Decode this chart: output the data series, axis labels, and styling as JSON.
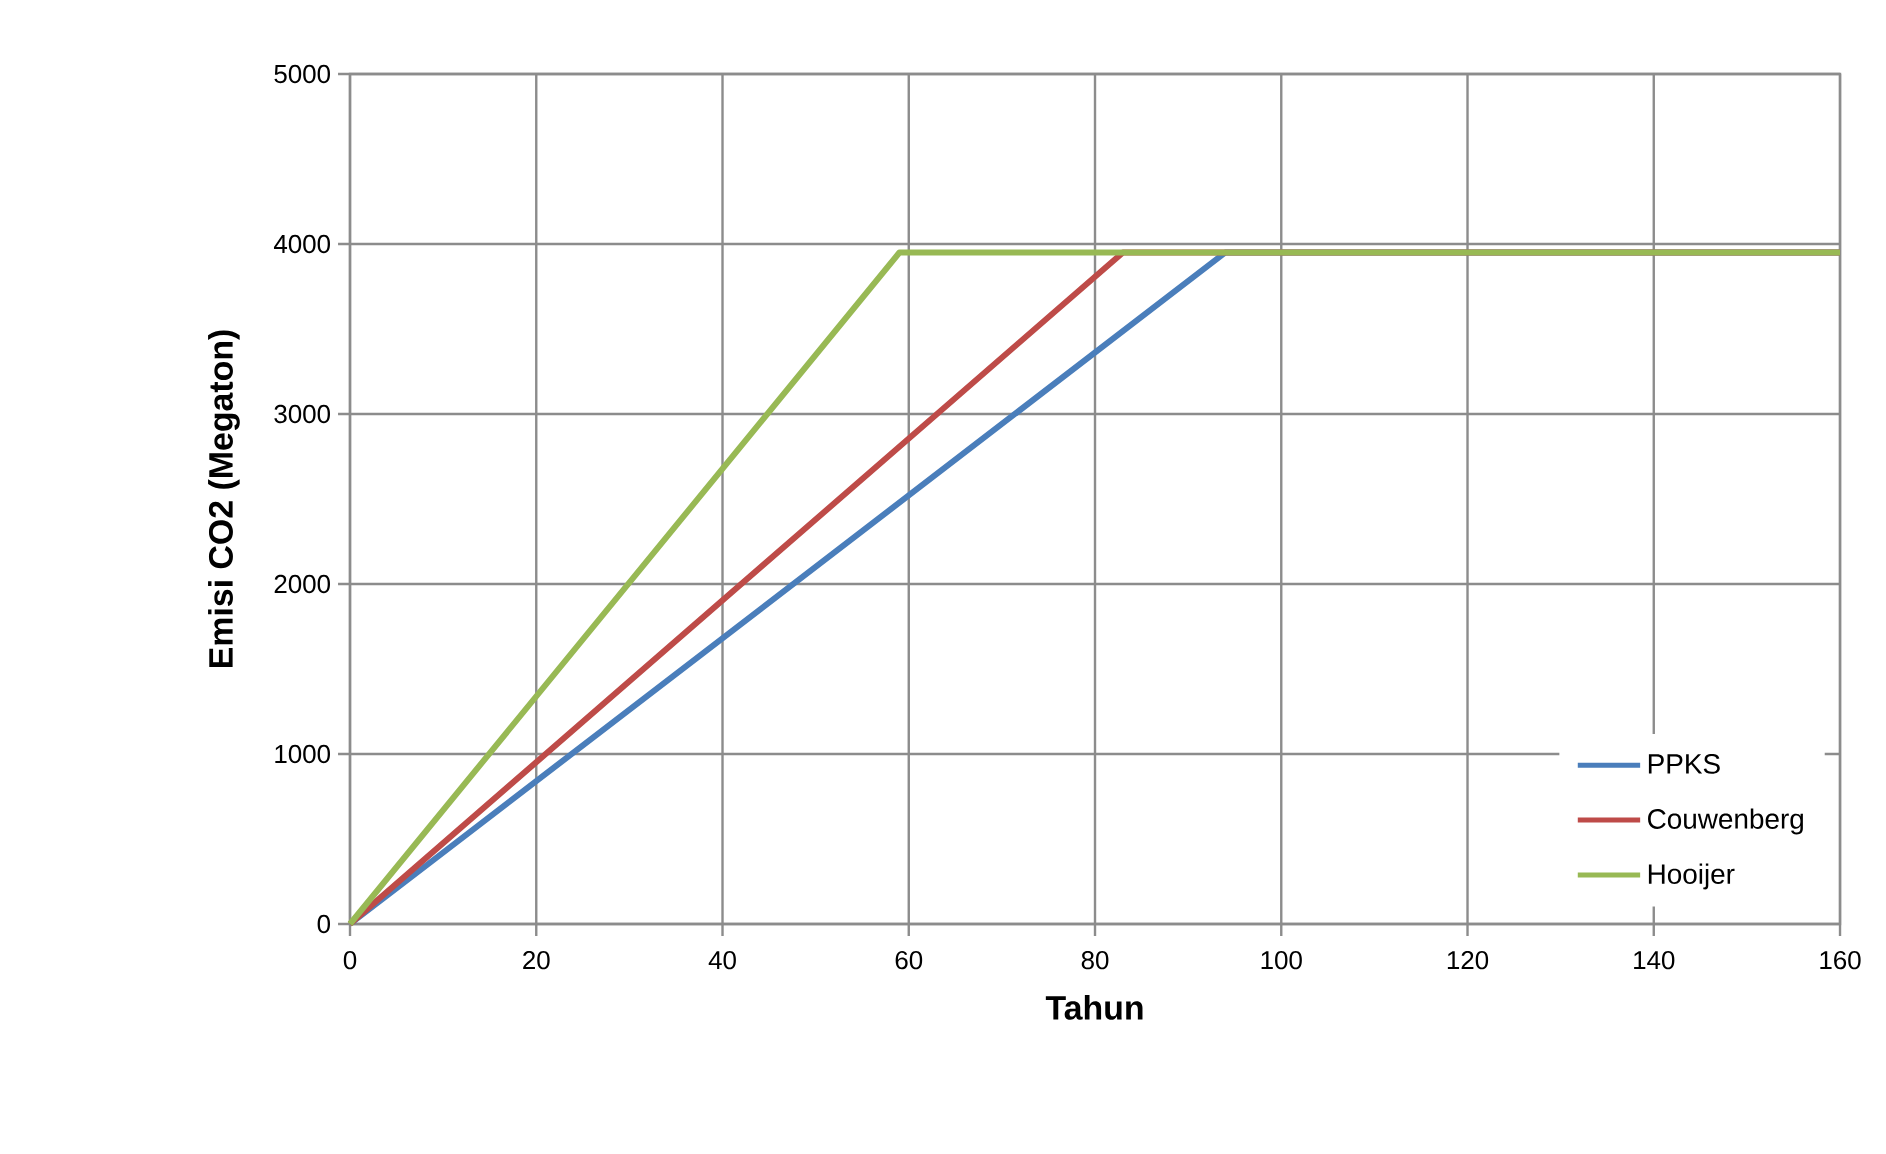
{
  "chart_data": {
    "type": "line",
    "xlabel": "Tahun",
    "ylabel": "Emisi CO2 (Megaton)",
    "xlim": [
      0,
      160
    ],
    "ylim": [
      0,
      5000
    ],
    "xticks": [
      0,
      20,
      40,
      60,
      80,
      100,
      120,
      140,
      160
    ],
    "yticks": [
      0,
      1000,
      2000,
      3000,
      4000,
      5000
    ],
    "grid": true,
    "legend": "bottom right",
    "marker": "none",
    "line_style": "solid",
    "series": [
      {
        "name": "PPKS",
        "color": "#4a7ebb",
        "x": [
          0,
          94,
          160
        ],
        "values": [
          0,
          3950,
          3950
        ]
      },
      {
        "name": "Couwenberg",
        "color": "#be4b48",
        "x": [
          0,
          83,
          160
        ],
        "values": [
          0,
          3950,
          3950
        ]
      },
      {
        "name": "Hooijer",
        "color": "#98b954",
        "x": [
          0,
          59,
          160
        ],
        "values": [
          0,
          3950,
          3950
        ]
      }
    ]
  }
}
